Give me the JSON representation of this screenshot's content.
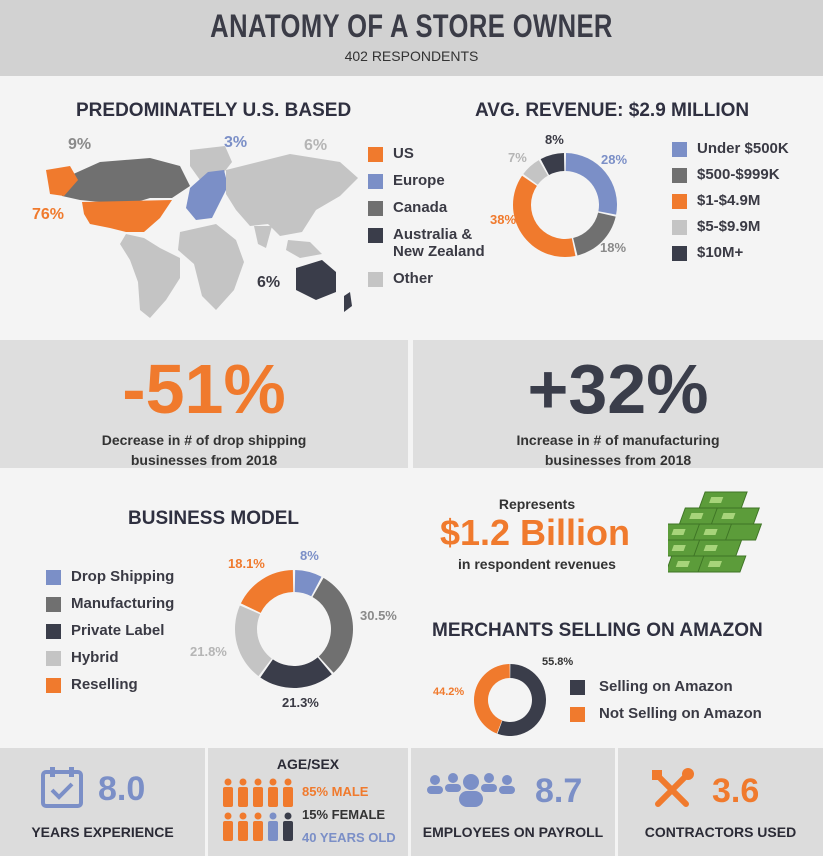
{
  "header": {
    "title": "ANATOMY OF A STORE OWNER",
    "subtitle": "402 RESPONDENTS"
  },
  "location": {
    "title": "PREDOMINATELY U.S. BASED",
    "labels": {
      "us": "76%",
      "europe": "3%",
      "canada": "9%",
      "anz": "6%",
      "other": "6%"
    },
    "legend": [
      {
        "label": "US",
        "color": "#f07a2d"
      },
      {
        "label": "Europe",
        "color": "#7b8fc7"
      },
      {
        "label": "Canada",
        "color": "#707070"
      },
      {
        "label": "Australia &",
        "label2": "New Zealand",
        "color": "#3a3d4a"
      },
      {
        "label": "Other",
        "color": "#c4c4c4"
      }
    ]
  },
  "revenue": {
    "title": "AVG. REVENUE: $2.9 MILLION",
    "legend": [
      "Under $500K",
      "$500-$999K",
      "$1-$4.9M",
      "$5-$9.9M",
      "$10M+"
    ],
    "labels": [
      "28%",
      "18%",
      "38%",
      "7%",
      "8%"
    ]
  },
  "stats": {
    "drop_value": "-51%",
    "drop_line1": "Decrease in # of drop shipping",
    "drop_line2": "businesses from 2018",
    "mfg_value": "+32%",
    "mfg_line1": "Increase in # of manufacturing",
    "mfg_line2": "businesses from 2018"
  },
  "model": {
    "title": "BUSINESS MODEL",
    "legend": [
      "Drop Shipping",
      "Manufacturing",
      "Private Label",
      "Hybrid",
      "Reselling"
    ],
    "labels": [
      "8%",
      "30.5%",
      "21.3%",
      "21.8%",
      "18.1%"
    ]
  },
  "billion": {
    "pre": "Represents",
    "value": "$1.2 Billion",
    "post": "in respondent revenues"
  },
  "amazon": {
    "title": "MERCHANTS SELLING ON AMAZON",
    "legend": [
      "Selling on Amazon",
      "Not Selling on Amazon"
    ],
    "labels": [
      "55.8%",
      "44.2%"
    ]
  },
  "footer": {
    "years_value": "8.0",
    "years_label": "YEARS EXPERIENCE",
    "age_title": "AGE/SEX",
    "male": "85% MALE",
    "female": "15% FEMALE",
    "age": "40 YEARS OLD",
    "employees_value": "8.7",
    "employees_label": "EMPLOYEES ON PAYROLL",
    "contractors_value": "3.6",
    "contractors_label": "CONTRACTORS USED"
  },
  "colors": {
    "orange": "#f07a2d",
    "blue": "#7b8fc7",
    "gray": "#707070",
    "dark": "#3a3d4a",
    "light": "#c4c4c4"
  },
  "chart_data": [
    {
      "type": "pie",
      "title": "AVG. REVENUE: $2.9 MILLION",
      "categories": [
        "Under $500K",
        "$500-$999K",
        "$1-$4.9M",
        "$5-$9.9M",
        "$10M+"
      ],
      "values": [
        28,
        18,
        38,
        7,
        8
      ]
    },
    {
      "type": "pie",
      "title": "BUSINESS MODEL",
      "categories": [
        "Drop Shipping",
        "Manufacturing",
        "Private Label",
        "Hybrid",
        "Reselling"
      ],
      "values": [
        8,
        30.5,
        21.3,
        21.8,
        18.1
      ]
    },
    {
      "type": "pie",
      "title": "MERCHANTS SELLING ON AMAZON",
      "categories": [
        "Selling on Amazon",
        "Not Selling on Amazon"
      ],
      "values": [
        55.8,
        44.2
      ]
    },
    {
      "type": "pie",
      "title": "PREDOMINATELY U.S. BASED",
      "categories": [
        "US",
        "Europe",
        "Canada",
        "Australia & New Zealand",
        "Other"
      ],
      "values": [
        76,
        3,
        9,
        6,
        6
      ]
    }
  ]
}
